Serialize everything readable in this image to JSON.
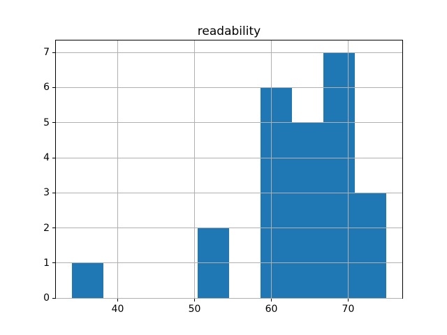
{
  "chart_data": {
    "type": "bar",
    "subtype": "histogram",
    "title": "readability",
    "xlabel": "",
    "ylabel": "",
    "bin_edges": [
      34.0,
      38.1,
      42.2,
      46.3,
      50.4,
      54.5,
      58.6,
      62.7,
      66.8,
      70.9,
      75.0
    ],
    "counts": [
      1,
      0,
      0,
      0,
      2,
      0,
      6,
      5,
      7,
      3
    ],
    "xticks": [
      40,
      50,
      60,
      70
    ],
    "yticks": [
      0,
      1,
      2,
      3,
      4,
      5,
      6,
      7
    ],
    "xlim": [
      31.95,
      77.05
    ],
    "ylim": [
      0,
      7.35
    ],
    "grid": true,
    "legend_position": "none",
    "colors": {
      "bar": "#1f77b4",
      "grid": "#b0b0b0",
      "spine": "#000000",
      "text": "#000000",
      "background": "#ffffff"
    }
  }
}
